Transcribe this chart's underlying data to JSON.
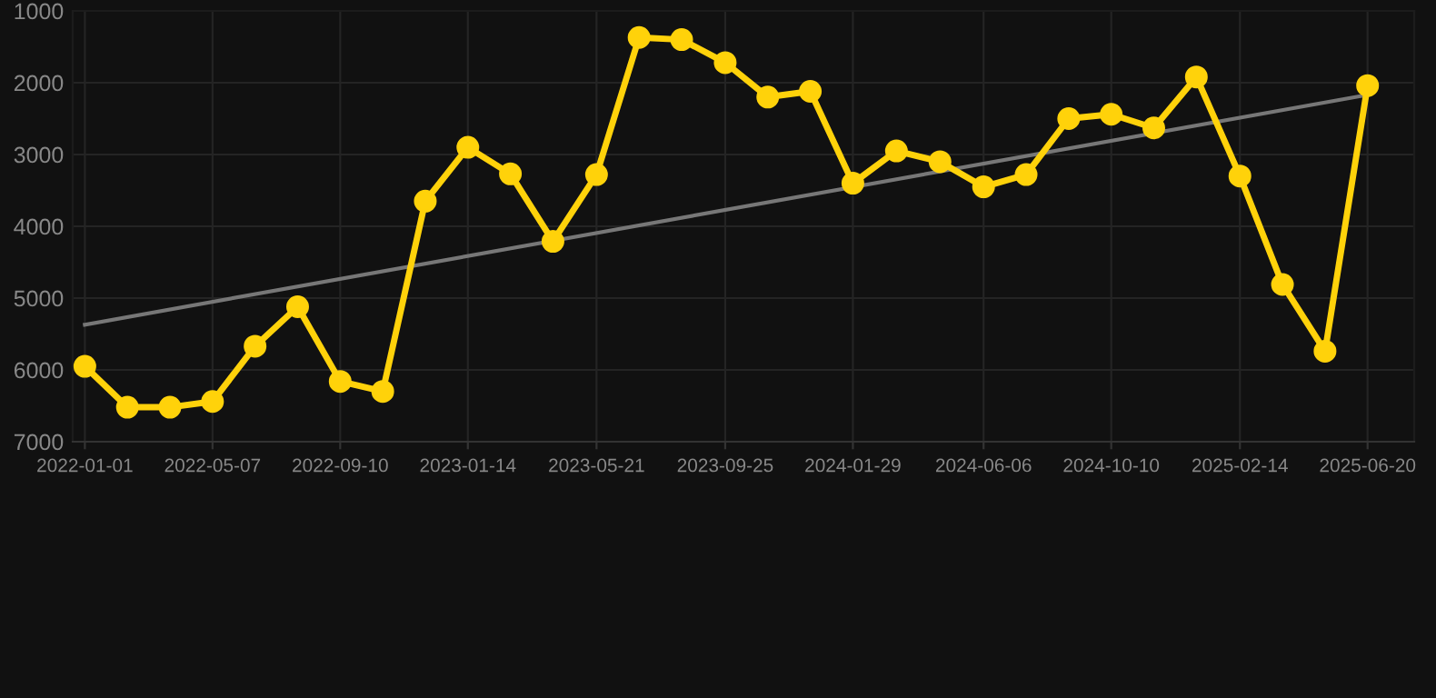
{
  "chart_data": {
    "type": "line",
    "x": [
      "2022-01-01",
      "2022-02-12",
      "2022-03-26",
      "2022-05-07",
      "2022-06-18",
      "2022-07-30",
      "2022-09-10",
      "2022-10-22",
      "2022-12-03",
      "2023-01-14",
      "2023-02-25",
      "2023-04-08",
      "2023-05-21",
      "2023-07-02",
      "2023-08-13",
      "2023-09-25",
      "2023-11-06",
      "2023-12-18",
      "2024-01-29",
      "2024-03-12",
      "2024-04-24",
      "2024-06-06",
      "2024-07-18",
      "2024-08-29",
      "2024-10-10",
      "2024-11-21",
      "2025-01-02",
      "2025-02-14",
      "2025-03-28",
      "2025-05-09",
      "2025-06-20"
    ],
    "series": [
      {
        "color": "#ffd20a",
        "marker": "circle",
        "values": [
          5950,
          6520,
          6520,
          6440,
          5670,
          5120,
          6160,
          6300,
          3650,
          2900,
          3270,
          4210,
          3280,
          1370,
          1400,
          1720,
          2200,
          2120,
          3400,
          2950,
          3100,
          3450,
          3280,
          2500,
          2440,
          2630,
          1920,
          3300,
          4810,
          5740,
          2040
        ]
      },
      {
        "color": "#777777",
        "marker": "none",
        "x": [
          "2022-01-01",
          "2025-06-20"
        ],
        "values": [
          5370,
          2170
        ]
      }
    ],
    "xlim": [
      "2021-12-20",
      "2025-08-05"
    ],
    "xticks": [
      "2022-01-01",
      "2022-05-07",
      "2022-09-10",
      "2023-01-14",
      "2023-05-21",
      "2023-09-25",
      "2024-01-29",
      "2024-06-06",
      "2024-10-10",
      "2025-02-14",
      "2025-06-20"
    ],
    "ylim": [
      7000,
      1000
    ],
    "yticks": [
      1000,
      2000,
      3000,
      4000,
      5000,
      6000,
      7000
    ],
    "grid": true,
    "line_style": "solid"
  }
}
